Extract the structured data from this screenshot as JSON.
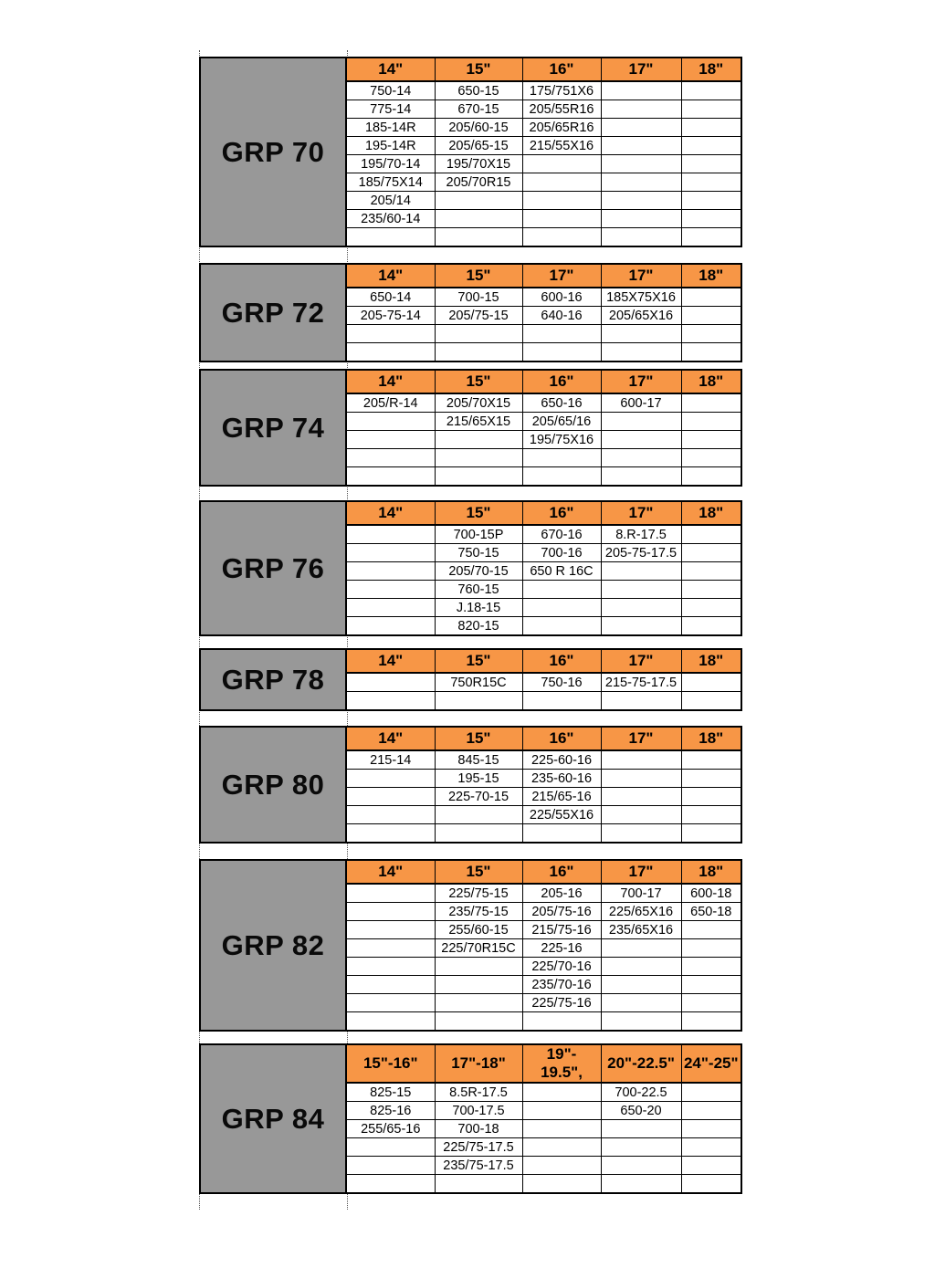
{
  "colors": {
    "page_bg": "#FFFFFF",
    "header_bg": "#F79646",
    "label_bg": "#989898",
    "border": "#000000",
    "text": "#000000"
  },
  "groups": [
    {
      "label": "GRP 70",
      "columns": [
        "14\"",
        "15\"",
        "16\"",
        "17\"",
        "18\""
      ],
      "rows": [
        [
          "750-14",
          "650-15",
          "175/751X6",
          "",
          ""
        ],
        [
          "775-14",
          "670-15",
          "205/55R16",
          "",
          ""
        ],
        [
          "185-14R",
          "205/60-15",
          "205/65R16",
          "",
          ""
        ],
        [
          "195-14R",
          "205/65-15",
          "215/55X16",
          "",
          ""
        ],
        [
          "195/70-14",
          "195/70X15",
          "",
          "",
          ""
        ],
        [
          "185/75X14",
          "205/70R15",
          "",
          "",
          ""
        ],
        [
          "205/14",
          "",
          "",
          "",
          ""
        ],
        [
          "235/60-14",
          "",
          "",
          "",
          ""
        ],
        [
          "",
          "",
          "",
          "",
          ""
        ]
      ]
    },
    {
      "label": "GRP 72",
      "columns": [
        "14\"",
        "15\"",
        "17\"",
        "17\"",
        "18\""
      ],
      "rows": [
        [
          "650-14",
          "700-15",
          "600-16",
          "185X75X16",
          ""
        ],
        [
          "205-75-14",
          "205/75-15",
          "640-16",
          "205/65X16",
          ""
        ],
        [
          "",
          "",
          "",
          "",
          ""
        ],
        [
          "",
          "",
          "",
          "",
          ""
        ]
      ]
    },
    {
      "label": "GRP 74",
      "columns": [
        "14\"",
        "15\"",
        "16\"",
        "17\"",
        "18\""
      ],
      "rows": [
        [
          "205/R-14",
          "205/70X15",
          "650-16",
          "600-17",
          ""
        ],
        [
          "",
          "215/65X15",
          "205/65/16",
          "",
          ""
        ],
        [
          "",
          "",
          "195/75X16",
          "",
          ""
        ],
        [
          "",
          "",
          "",
          "",
          ""
        ],
        [
          "",
          "",
          "",
          "",
          ""
        ]
      ]
    },
    {
      "label": "GRP 76",
      "columns": [
        "14\"",
        "15\"",
        "16\"",
        "17\"",
        "18\""
      ],
      "rows": [
        [
          "",
          "700-15P",
          "670-16",
          "8.R-17.5",
          ""
        ],
        [
          "",
          "750-15",
          "700-16",
          "205-75-17.5",
          ""
        ],
        [
          "",
          "205/70-15",
          "650 R 16C",
          "",
          ""
        ],
        [
          "",
          "760-15",
          "",
          "",
          ""
        ],
        [
          "",
          "J.18-15",
          "",
          "",
          ""
        ],
        [
          "",
          "820-15",
          "",
          "",
          ""
        ]
      ]
    },
    {
      "label": "GRP 78",
      "columns": [
        "14\"",
        "15\"",
        "16\"",
        "17\"",
        "18\""
      ],
      "rows": [
        [
          "",
          "750R15C",
          "750-16",
          "215-75-17.5",
          ""
        ],
        [
          "",
          "",
          "",
          "",
          ""
        ]
      ]
    },
    {
      "label": "GRP 80",
      "columns": [
        "14\"",
        "15\"",
        "16\"",
        "17\"",
        "18\""
      ],
      "rows": [
        [
          "215-14",
          "845-15",
          "225-60-16",
          "",
          ""
        ],
        [
          "",
          "195-15",
          "235-60-16",
          "",
          ""
        ],
        [
          "",
          "225-70-15",
          "215/65-16",
          "",
          ""
        ],
        [
          "",
          "",
          "225/55X16",
          "",
          ""
        ],
        [
          "",
          "",
          "",
          "",
          ""
        ]
      ]
    },
    {
      "label": "GRP 82",
      "columns": [
        "14\"",
        "15\"",
        "16\"",
        "17\"",
        "18\""
      ],
      "rows": [
        [
          "",
          "225/75-15",
          "205-16",
          "700-17",
          "600-18"
        ],
        [
          "",
          "235/75-15",
          "205/75-16",
          "225/65X16",
          "650-18"
        ],
        [
          "",
          "255/60-15",
          "215/75-16",
          "235/65X16",
          ""
        ],
        [
          "",
          "225/70R15C",
          "225-16",
          "",
          ""
        ],
        [
          "",
          "",
          "225/70-16",
          "",
          ""
        ],
        [
          "",
          "",
          "235/70-16",
          "",
          ""
        ],
        [
          "",
          "",
          "225/75-16",
          "",
          ""
        ],
        [
          "",
          "",
          "",
          "",
          ""
        ]
      ]
    },
    {
      "label": "GRP 84",
      "columns": [
        "15\"-16\"",
        "17\"-18\"",
        "19\"-\n19.5\",",
        "20\"-22.5\"",
        "24\"-25\""
      ],
      "rows": [
        [
          "825-15",
          "8.5R-17.5",
          "",
          "700-22.5",
          ""
        ],
        [
          "825-16",
          "700-17.5",
          "",
          "650-20",
          ""
        ],
        [
          "255/65-16",
          "700-18",
          "",
          "",
          ""
        ],
        [
          "",
          "225/75-17.5",
          "",
          "",
          ""
        ],
        [
          "",
          "235/75-17.5",
          "",
          "",
          ""
        ],
        [
          "",
          "",
          "",
          "",
          ""
        ]
      ]
    }
  ]
}
